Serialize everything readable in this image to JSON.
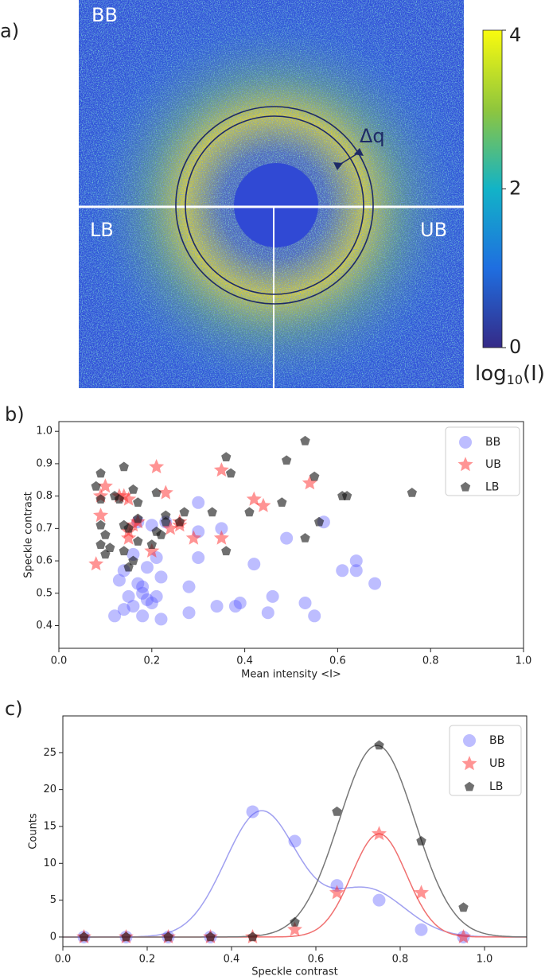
{
  "chart_data": [
    {
      "type": "image",
      "panel_label": "a)",
      "region_labels": [
        "BB",
        "LB",
        "UB"
      ],
      "annotation": "Δq",
      "colorbar": {
        "lim": [
          0,
          4
        ],
        "ticks": [
          0,
          2,
          4
        ],
        "label": {
          "base": "log",
          "sub": "10",
          "rest": "(I)"
        },
        "colors": [
          "#352a87",
          "#1f6ee0",
          "#12b3c7",
          "#8fc63d",
          "#f9fb0e"
        ]
      }
    },
    {
      "type": "scatter",
      "panel_label": "b)",
      "xlabel": "Mean intensity <I>",
      "ylabel": "Speckle contrast",
      "xlim": [
        0,
        1
      ],
      "ylim": [
        0.33,
        1.03
      ],
      "xticks": [
        {
          "value": 0,
          "label": "0.0"
        },
        0.2,
        0.4,
        0.6,
        0.8,
        {
          "value": 1,
          "label": "1.0"
        }
      ],
      "yticks": [
        0.4,
        0.5,
        0.6,
        0.7,
        0.8,
        0.9,
        {
          "value": 1,
          "label": "1.0"
        }
      ],
      "legend": "upper right",
      "series": [
        {
          "name": "BB",
          "marker": "circle",
          "color": "#5a5aff",
          "alpha": 0.4,
          "x": [
            0.12,
            0.14,
            0.16,
            0.18,
            0.2,
            0.22,
            0.15,
            0.19,
            0.21,
            0.13,
            0.17,
            0.18,
            0.14,
            0.22,
            0.19,
            0.21,
            0.17,
            0.2,
            0.23,
            0.28,
            0.28,
            0.3,
            0.3,
            0.3,
            0.35,
            0.34,
            0.38,
            0.39,
            0.42,
            0.45,
            0.46,
            0.49,
            0.53,
            0.55,
            0.57,
            0.61,
            0.64,
            0.64,
            0.68,
            0.16,
            0.18
          ],
          "values": [
            0.43,
            0.45,
            0.46,
            0.43,
            0.47,
            0.42,
            0.49,
            0.48,
            0.49,
            0.54,
            0.53,
            0.52,
            0.57,
            0.55,
            0.58,
            0.61,
            0.72,
            0.71,
            0.72,
            0.52,
            0.44,
            0.61,
            0.69,
            0.78,
            0.7,
            0.46,
            0.46,
            0.47,
            0.59,
            0.44,
            0.49,
            0.67,
            0.47,
            0.43,
            0.72,
            0.57,
            0.6,
            0.57,
            0.53,
            0.62,
            0.5
          ]
        },
        {
          "name": "UB",
          "marker": "star",
          "color": "#ff2a2a",
          "alpha": 0.5,
          "x": [
            0.08,
            0.09,
            0.09,
            0.1,
            0.13,
            0.14,
            0.15,
            0.15,
            0.16,
            0.17,
            0.15,
            0.21,
            0.23,
            0.2,
            0.24,
            0.26,
            0.26,
            0.29,
            0.35,
            0.35,
            0.42,
            0.44,
            0.54
          ],
          "values": [
            0.59,
            0.74,
            0.8,
            0.83,
            0.8,
            0.8,
            0.69,
            0.67,
            0.71,
            0.72,
            0.79,
            0.89,
            0.81,
            0.63,
            0.7,
            0.72,
            0.71,
            0.67,
            0.88,
            0.67,
            0.79,
            0.77,
            0.84
          ]
        },
        {
          "name": "LB",
          "marker": "pentagon",
          "color": "#111111",
          "alpha": 0.6,
          "x": [
            0.08,
            0.09,
            0.09,
            0.09,
            0.09,
            0.1,
            0.1,
            0.11,
            0.12,
            0.13,
            0.14,
            0.14,
            0.15,
            0.14,
            0.15,
            0.16,
            0.17,
            0.17,
            0.16,
            0.17,
            0.21,
            0.21,
            0.22,
            0.23,
            0.23,
            0.2,
            0.26,
            0.27,
            0.33,
            0.36,
            0.36,
            0.37,
            0.41,
            0.48,
            0.49,
            0.53,
            0.53,
            0.55,
            0.56,
            0.61,
            0.62,
            0.76
          ],
          "values": [
            0.83,
            0.87,
            0.79,
            0.71,
            0.65,
            0.68,
            0.62,
            0.64,
            0.8,
            0.79,
            0.89,
            0.71,
            0.7,
            0.63,
            0.58,
            0.82,
            0.78,
            0.66,
            0.6,
            0.73,
            0.81,
            0.69,
            0.68,
            0.74,
            0.72,
            0.65,
            0.72,
            0.75,
            0.75,
            0.92,
            0.63,
            0.87,
            0.75,
            0.78,
            0.91,
            0.97,
            0.67,
            0.86,
            0.72,
            0.8,
            0.8,
            0.81
          ]
        }
      ]
    },
    {
      "type": "scatter",
      "panel_label": "c)",
      "xlabel": "Speckle contrast",
      "ylabel": "Counts",
      "xlim": [
        0,
        1.1
      ],
      "ylim": [
        -1.3,
        30
      ],
      "xticks": [
        {
          "value": 0,
          "label": "0.0"
        },
        0.2,
        0.4,
        0.6,
        0.8,
        {
          "value": 1,
          "label": "1.0"
        }
      ],
      "yticks": [
        0,
        5,
        10,
        15,
        20,
        25
      ],
      "legend": "upper right",
      "x": [
        0.05,
        0.15,
        0.25,
        0.35,
        0.45,
        0.55,
        0.65,
        0.75,
        0.85,
        0.95
      ],
      "series": [
        {
          "name": "BB",
          "marker": "circle",
          "color": "#5a5aff",
          "alpha": 0.4,
          "fit_color": "#a0a0f0",
          "values": [
            0,
            0,
            0,
            0,
            17,
            13,
            7,
            5,
            1,
            0
          ],
          "fit": [
            {
              "amplitude": 17,
              "center": 0.47,
              "sigma": 0.085
            },
            {
              "amplitude": 6.5,
              "center": 0.72,
              "sigma": 0.09
            }
          ]
        },
        {
          "name": "UB",
          "marker": "star",
          "color": "#ff2a2a",
          "alpha": 0.5,
          "fit_color": "#f07070",
          "values": [
            0,
            0,
            0,
            0,
            0,
            1,
            6,
            14,
            6,
            0
          ],
          "fit": [
            {
              "amplitude": 14,
              "center": 0.75,
              "sigma": 0.065
            }
          ]
        },
        {
          "name": "LB",
          "marker": "pentagon",
          "color": "#111111",
          "alpha": 0.6,
          "fit_color": "#777777",
          "values": [
            0,
            0,
            0,
            0,
            0,
            2,
            17,
            26,
            13,
            4
          ],
          "fit": [
            {
              "amplitude": 26,
              "center": 0.745,
              "sigma": 0.09
            }
          ]
        }
      ]
    }
  ]
}
